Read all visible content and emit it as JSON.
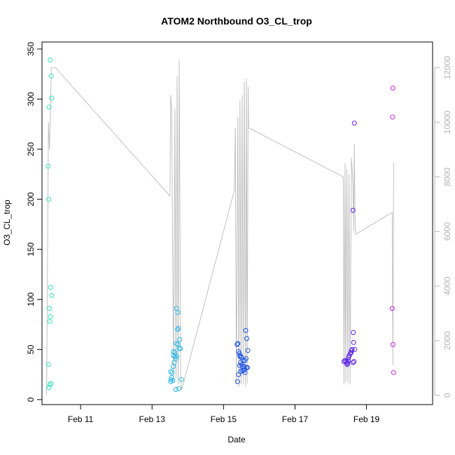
{
  "chart_data": {
    "type": "scatter",
    "title": "ATOM2 Northbound O3_CL_trop",
    "xlabel": "Date",
    "ylabel": "O3_CL_trop",
    "x_unit": "days",
    "x_ticks": [
      {
        "value": 11,
        "label": "Feb 11"
      },
      {
        "value": 13,
        "label": "Feb 13"
      },
      {
        "value": 15,
        "label": "Feb 15"
      },
      {
        "value": 17,
        "label": "Feb 17"
      },
      {
        "value": 19,
        "label": "Feb 19"
      }
    ],
    "xlim": [
      9.92,
      20.85
    ],
    "ylim": [
      -5,
      357
    ],
    "y_ticks": [
      0,
      50,
      100,
      150,
      200,
      250,
      300,
      350
    ],
    "y2_ticks": [
      0,
      2000,
      4000,
      6000,
      8000,
      10000,
      12000
    ],
    "y2lim": [
      -341,
      12941
    ],
    "colors": {
      "secondary_line": "#c0c0c0",
      "secondary_axis": "#b4b4b4"
    },
    "series": [
      {
        "color": "#2ee6b8",
        "points": [
          [
            10.15,
            339
          ],
          [
            10.18,
            323
          ],
          [
            10.19,
            301
          ],
          [
            10.12,
            292
          ],
          [
            10.09,
            233
          ],
          [
            10.11,
            200
          ],
          [
            10.16,
            112
          ],
          [
            10.19,
            104
          ],
          [
            10.13,
            91
          ],
          [
            10.16,
            83
          ],
          [
            10.14,
            78
          ],
          [
            10.1,
            35
          ],
          [
            10.17,
            16
          ],
          [
            10.14,
            15
          ],
          [
            10.12,
            12
          ]
        ]
      },
      {
        "color": "#27b8e6",
        "points": [
          [
            13.68,
            91
          ],
          [
            13.72,
            87
          ],
          [
            13.74,
            71
          ],
          [
            13.71,
            70
          ],
          [
            13.77,
            60
          ],
          [
            13.68,
            56
          ],
          [
            13.72,
            55
          ],
          [
            13.76,
            51
          ],
          [
            13.79,
            51
          ],
          [
            13.6,
            48
          ],
          [
            13.64,
            47
          ],
          [
            13.6,
            44
          ],
          [
            13.64,
            43
          ],
          [
            13.69,
            43
          ],
          [
            13.67,
            41
          ],
          [
            13.62,
            37
          ],
          [
            13.59,
            33
          ],
          [
            13.52,
            28
          ],
          [
            13.56,
            27
          ],
          [
            13.55,
            22
          ],
          [
            13.53,
            20
          ],
          [
            13.58,
            19
          ],
          [
            13.52,
            18
          ],
          [
            13.82,
            20
          ],
          [
            13.67,
            10
          ],
          [
            13.75,
            11
          ]
        ]
      },
      {
        "color": "#1f54e6",
        "points": [
          [
            15.62,
            69
          ],
          [
            15.65,
            61
          ],
          [
            15.4,
            56
          ],
          [
            15.38,
            55
          ],
          [
            15.68,
            49
          ],
          [
            15.42,
            48
          ],
          [
            15.44,
            46
          ],
          [
            15.46,
            43
          ],
          [
            15.5,
            42
          ],
          [
            15.55,
            39
          ],
          [
            15.6,
            39
          ],
          [
            15.63,
            41
          ],
          [
            15.48,
            37
          ],
          [
            15.51,
            35
          ],
          [
            15.53,
            33
          ],
          [
            15.45,
            34
          ],
          [
            15.58,
            33
          ],
          [
            15.64,
            32
          ],
          [
            15.67,
            32
          ],
          [
            15.52,
            29
          ],
          [
            15.56,
            29
          ],
          [
            15.59,
            30
          ],
          [
            15.48,
            28
          ],
          [
            15.6,
            27
          ],
          [
            15.42,
            25
          ],
          [
            15.39,
            18
          ],
          [
            15.47,
            44
          ]
        ]
      },
      {
        "color": "#5a1fe6",
        "points": [
          [
            18.37,
            38
          ],
          [
            18.4,
            39
          ],
          [
            18.43,
            38
          ],
          [
            18.45,
            36
          ],
          [
            18.47,
            37
          ],
          [
            18.49,
            39
          ],
          [
            18.5,
            42
          ],
          [
            18.52,
            44
          ],
          [
            18.55,
            46
          ],
          [
            18.57,
            47
          ],
          [
            18.58,
            49
          ],
          [
            18.6,
            50
          ],
          [
            18.62,
            37
          ],
          [
            18.65,
            38
          ],
          [
            18.67,
            50
          ],
          [
            18.64,
            57
          ],
          [
            18.63,
            67
          ],
          [
            18.62,
            189
          ],
          [
            18.66,
            276
          ],
          [
            18.46,
            35
          ]
        ]
      },
      {
        "color": "#c81fe6",
        "points": [
          [
            19.74,
            311
          ],
          [
            19.73,
            282
          ],
          [
            19.72,
            91
          ],
          [
            19.74,
            55
          ],
          [
            19.76,
            27
          ]
        ]
      }
    ],
    "secondary_line": [
      [
        10.05,
        0
      ],
      [
        10.1,
        10000
      ],
      [
        10.13,
        9000
      ],
      [
        10.18,
        12000
      ],
      [
        10.3,
        12000
      ],
      [
        13.5,
        7300
      ],
      [
        13.52,
        11000
      ],
      [
        13.55,
        10500
      ],
      [
        13.6,
        500
      ],
      [
        13.64,
        10500
      ],
      [
        13.67,
        600
      ],
      [
        13.7,
        11700
      ],
      [
        13.73,
        400
      ],
      [
        13.76,
        12300
      ],
      [
        13.8,
        700
      ],
      [
        13.83,
        200
      ],
      [
        15.3,
        7500
      ],
      [
        15.33,
        9800
      ],
      [
        15.36,
        400
      ],
      [
        15.4,
        10200
      ],
      [
        15.43,
        300
      ],
      [
        15.46,
        10800
      ],
      [
        15.49,
        400
      ],
      [
        15.52,
        11000
      ],
      [
        15.55,
        400
      ],
      [
        15.58,
        11500
      ],
      [
        15.61,
        300
      ],
      [
        15.64,
        11600
      ],
      [
        15.66,
        400
      ],
      [
        15.69,
        11300
      ],
      [
        15.7,
        9800
      ],
      [
        18.35,
        8000
      ],
      [
        18.37,
        400
      ],
      [
        18.4,
        8500
      ],
      [
        18.42,
        500
      ],
      [
        18.45,
        8300
      ],
      [
        18.48,
        450
      ],
      [
        18.51,
        8100
      ],
      [
        18.54,
        400
      ],
      [
        18.58,
        8700
      ],
      [
        18.62,
        7800
      ],
      [
        18.64,
        6000
      ],
      [
        18.66,
        9200
      ],
      [
        18.68,
        6600
      ],
      [
        18.7,
        5900
      ],
      [
        19.72,
        6700
      ],
      [
        19.74,
        1100
      ],
      [
        19.76,
        8500
      ],
      [
        19.77,
        8500
      ]
    ]
  }
}
